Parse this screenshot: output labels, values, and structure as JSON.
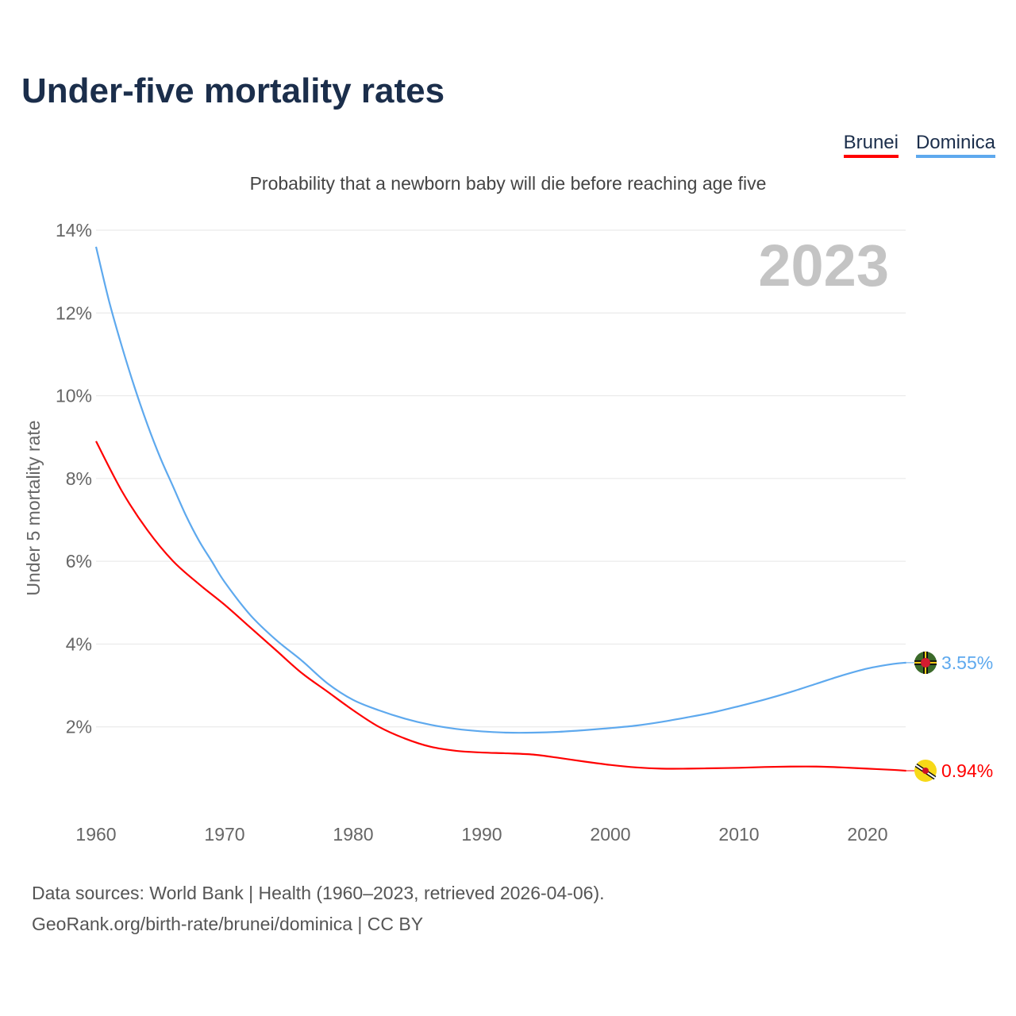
{
  "title": "Under-five mortality rates",
  "subtitle": "Probability that a newborn baby will die before reaching age five",
  "year_label": "2023",
  "source_line1": "Data sources: World Bank | Health (1960–2023, retrieved 2026-04-06).",
  "source_line2": "GeoRank.org/birth-rate/brunei/dominica | CC BY",
  "chart_data": {
    "type": "line",
    "title": "Under-five mortality rates",
    "xlabel": "",
    "ylabel": "Under 5 mortality rate",
    "xlim": [
      1960,
      2023
    ],
    "ylim": [
      0,
      14
    ],
    "yticks": [
      2,
      4,
      6,
      8,
      10,
      12,
      14
    ],
    "ytick_labels": [
      "2%",
      "4%",
      "6%",
      "8%",
      "10%",
      "12%",
      "14%"
    ],
    "xticks": [
      1960,
      1970,
      1980,
      1990,
      2000,
      2010,
      2020
    ],
    "xtick_labels": [
      "1960",
      "1970",
      "1980",
      "1990",
      "2000",
      "2010",
      "2020"
    ],
    "grid": true,
    "legend_placement": "top-right",
    "series": [
      {
        "name": "Brunei",
        "color": "#ff0000",
        "end_label": "0.94%",
        "flag": "brunei-flag",
        "x": [
          1960,
          1962,
          1964,
          1966,
          1968,
          1970,
          1972,
          1974,
          1976,
          1978,
          1980,
          1982,
          1984,
          1986,
          1988,
          1990,
          1992,
          1994,
          1996,
          1998,
          2000,
          2002,
          2004,
          2006,
          2008,
          2010,
          2012,
          2014,
          2016,
          2018,
          2020,
          2022,
          2023
        ],
        "y": [
          8.9,
          7.7,
          6.75,
          6.0,
          5.45,
          4.95,
          4.4,
          3.85,
          3.3,
          2.85,
          2.4,
          2.0,
          1.72,
          1.52,
          1.42,
          1.38,
          1.36,
          1.33,
          1.25,
          1.16,
          1.08,
          1.02,
          0.99,
          0.99,
          1.0,
          1.01,
          1.03,
          1.04,
          1.04,
          1.02,
          0.99,
          0.96,
          0.94
        ]
      },
      {
        "name": "Dominica",
        "color": "#5ea9ee",
        "end_label": "3.55%",
        "flag": "dominica-flag",
        "x": [
          1960,
          1961,
          1962,
          1963,
          1964,
          1965,
          1966,
          1967,
          1968,
          1969,
          1970,
          1972,
          1974,
          1976,
          1978,
          1980,
          1982,
          1984,
          1986,
          1988,
          1990,
          1992,
          1994,
          1996,
          1998,
          2000,
          2002,
          2004,
          2006,
          2008,
          2010,
          2012,
          2014,
          2016,
          2018,
          2020,
          2022,
          2023
        ],
        "y": [
          13.6,
          12.3,
          11.2,
          10.2,
          9.3,
          8.5,
          7.8,
          7.1,
          6.5,
          6.0,
          5.5,
          4.7,
          4.1,
          3.6,
          3.05,
          2.65,
          2.4,
          2.2,
          2.05,
          1.95,
          1.89,
          1.86,
          1.86,
          1.88,
          1.92,
          1.97,
          2.03,
          2.12,
          2.23,
          2.35,
          2.5,
          2.66,
          2.84,
          3.04,
          3.24,
          3.41,
          3.52,
          3.55
        ]
      }
    ]
  }
}
